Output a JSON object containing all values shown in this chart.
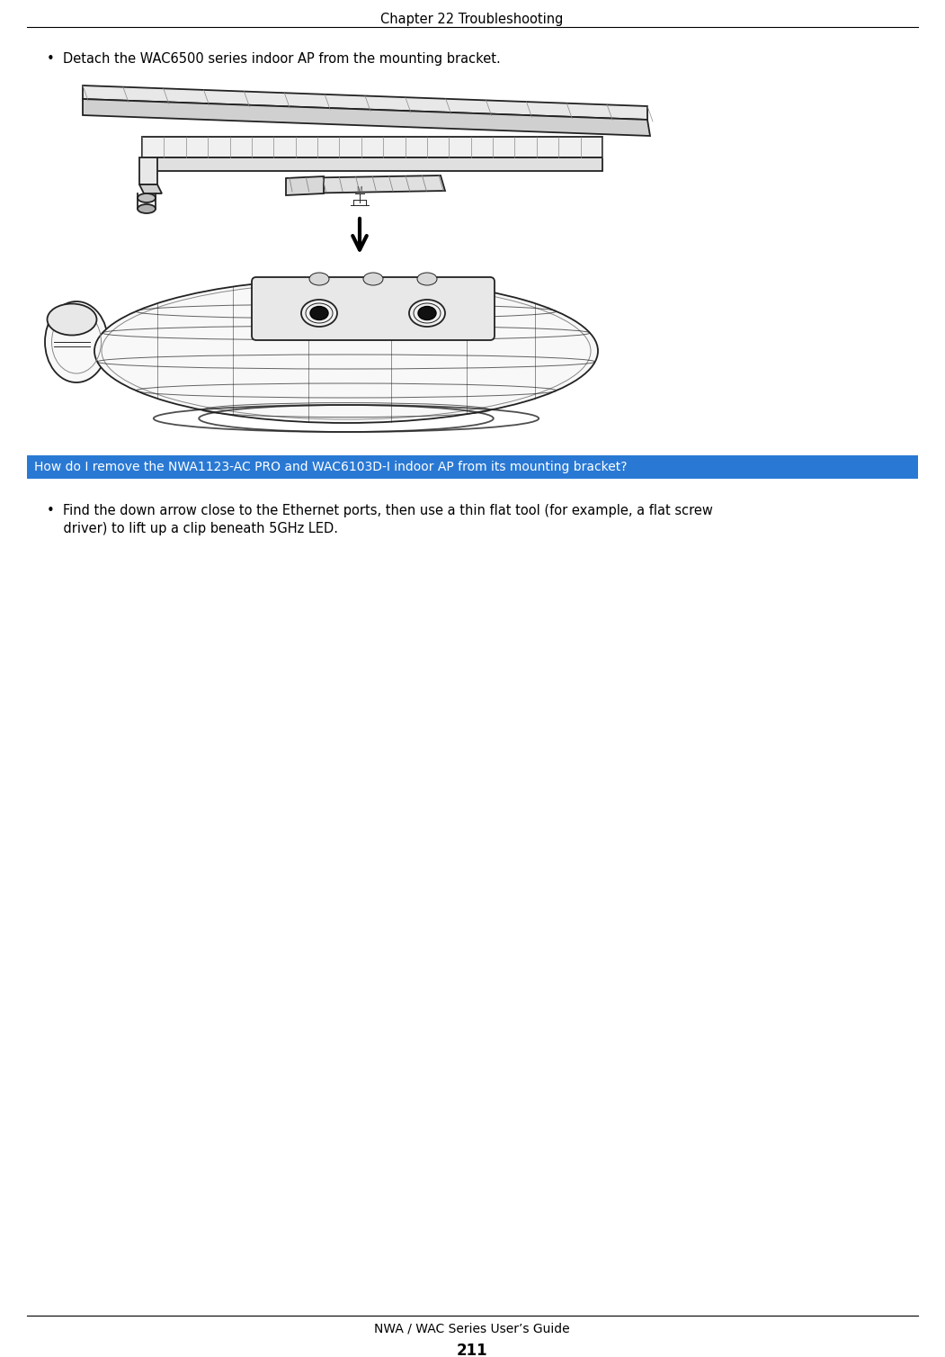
{
  "page_title": "Chapter 22 Troubleshooting",
  "footer_text": "NWA / WAC Series User’s Guide",
  "footer_page": "211",
  "bg_color": "#ffffff",
  "title_color": "#000000",
  "header_line_color": "#000000",
  "footer_line_color": "#000000",
  "bullet_text_1": "•  Detach the WAC6500 series indoor AP from the mounting bracket.",
  "section_heading": "How do I remove the NWA1123-AC PRO and WAC6103D-I indoor AP from its mounting bracket?",
  "section_heading_color": "#ffffff",
  "section_heading_bg": "#2979d4",
  "bullet2_line1": "•  Find the down arrow close to the Ethernet ports, then use a thin flat tool (for example, a flat screw",
  "bullet2_line2": "    driver) to lift up a clip beneath 5GHz LED.",
  "diagram_color": "#222222",
  "diagram_light": "#888888",
  "diagram_fill": "#f8f8f8"
}
